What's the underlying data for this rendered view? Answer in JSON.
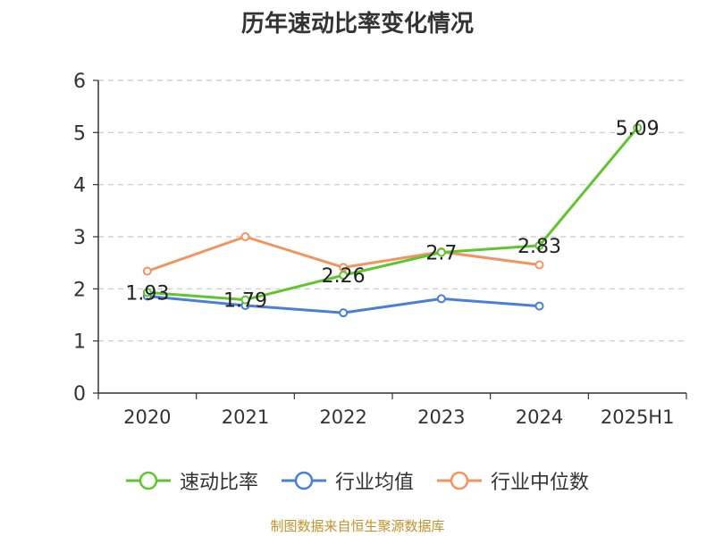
{
  "source_text": "制图数据来自恒生聚源数据库",
  "chart_data": {
    "type": "line",
    "title": "历年速动比率变化情况",
    "categories": [
      "2020",
      "2021",
      "2022",
      "2023",
      "2024",
      "2025H1"
    ],
    "ylim": [
      0,
      6
    ],
    "y_ticks": [
      0,
      1,
      2,
      3,
      4,
      5,
      6
    ],
    "grid": "horizontal dashed",
    "legend_position": "bottom-center",
    "series": [
      {
        "name": "速动比率",
        "color": "#5fc52c",
        "values": [
          1.93,
          1.79,
          2.26,
          2.7,
          2.83,
          5.09
        ],
        "labels": [
          "1.93",
          "1.79",
          "2.26",
          "2.7",
          "2.83",
          "5.09"
        ]
      },
      {
        "name": "行业均值",
        "color": "#4a7fd8",
        "values": [
          1.86,
          1.68,
          1.54,
          1.81,
          1.67,
          null
        ]
      },
      {
        "name": "行业中位数",
        "color": "#f39360",
        "values": [
          2.34,
          3.0,
          2.41,
          2.71,
          2.46,
          null
        ]
      }
    ]
  }
}
